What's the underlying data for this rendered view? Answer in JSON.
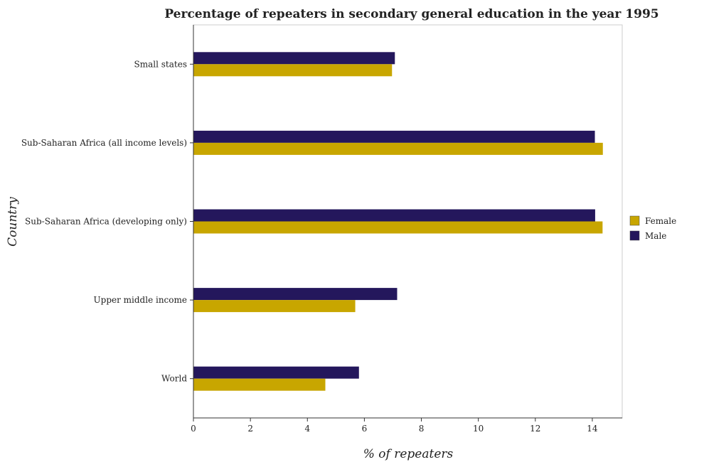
{
  "chart_data": {
    "type": "bar",
    "orientation": "horizontal",
    "title": "Percentage of repeaters in secondary general education in the year 1995",
    "xlabel": "% of repeaters",
    "ylabel": "Country",
    "categories": [
      "Small states",
      "Sub-Saharan Africa (all income levels)",
      "Sub-Saharan Africa (developing only)",
      "Upper middle income",
      "World"
    ],
    "series": [
      {
        "name": "Female",
        "color": "#c8a600",
        "values": [
          6.97,
          14.37,
          14.36,
          5.68,
          4.63
        ]
      },
      {
        "name": "Male",
        "color": "#24175c",
        "values": [
          7.07,
          14.09,
          14.1,
          7.15,
          5.81
        ]
      }
    ],
    "xlim": [
      0,
      15.05
    ],
    "xticks": [
      "0",
      "2",
      "4",
      "6",
      "8",
      "10",
      "12",
      "14"
    ],
    "grid": false,
    "legend": "right"
  }
}
